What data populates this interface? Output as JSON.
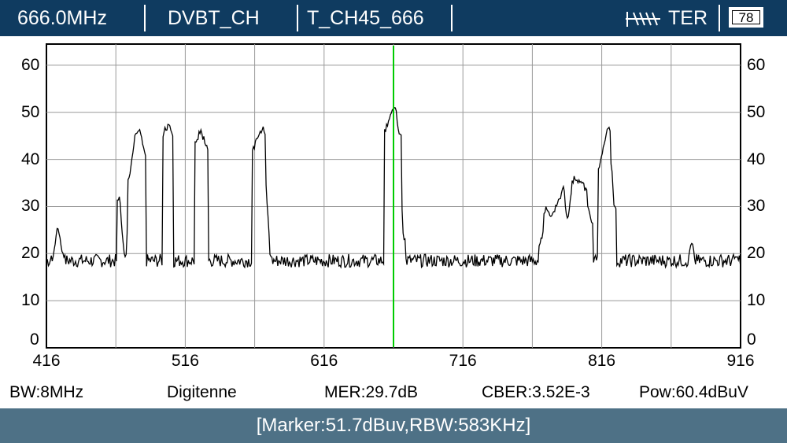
{
  "header": {
    "frequency": "666.0MHz",
    "standard": "DVBT_CH",
    "channel": "T_CH45_666",
    "signal_type": "TER",
    "battery": "78"
  },
  "status": {
    "bandwidth": "BW:8MHz",
    "network": "Digitenne",
    "mer": "MER:29.7dB",
    "cber": "CBER:3.52E-3",
    "power": "Pow:60.4dBuV"
  },
  "marker_info": "[Marker:51.7dBuv,RBW:583KHz]",
  "colors": {
    "header_bg": "#0f3b60",
    "footer_bg": "#4e7186",
    "marker": "#00cc00",
    "trace": "#000000",
    "grid": "#999999"
  },
  "chart_data": {
    "type": "line",
    "x_ticks": [
      "416",
      "516",
      "616",
      "716",
      "816",
      "916"
    ],
    "y_ticks": [
      "0",
      "10",
      "20",
      "30",
      "40",
      "50",
      "60"
    ],
    "xlim": [
      416,
      916
    ],
    "ylim": [
      0,
      60
    ],
    "marker_x": 666,
    "grid": true,
    "noise_floor": 18.5,
    "peaks": [
      {
        "x": 419,
        "y": 16
      },
      {
        "x": 424,
        "y": 25
      },
      {
        "x": 427,
        "y": 21
      },
      {
        "x": 468,
        "y": 32
      },
      {
        "x": 473,
        "y": 18
      },
      {
        "x": 476,
        "y": 37
      },
      {
        "x": 481,
        "y": 46
      },
      {
        "x": 483,
        "y": 46
      },
      {
        "x": 486,
        "y": 42
      },
      {
        "x": 501,
        "y": 46
      },
      {
        "x": 504,
        "y": 47
      },
      {
        "x": 506,
        "y": 46
      },
      {
        "x": 524,
        "y": 44
      },
      {
        "x": 527,
        "y": 46
      },
      {
        "x": 531,
        "y": 43
      },
      {
        "x": 566,
        "y": 43
      },
      {
        "x": 569,
        "y": 45
      },
      {
        "x": 572,
        "y": 47
      },
      {
        "x": 577,
        "y": 20
      },
      {
        "x": 661,
        "y": 47
      },
      {
        "x": 665,
        "y": 50
      },
      {
        "x": 667,
        "y": 51.5
      },
      {
        "x": 670,
        "y": 46
      },
      {
        "x": 673,
        "y": 24
      },
      {
        "x": 772,
        "y": 22
      },
      {
        "x": 776,
        "y": 30
      },
      {
        "x": 779,
        "y": 28
      },
      {
        "x": 784,
        "y": 30
      },
      {
        "x": 788,
        "y": 34
      },
      {
        "x": 791,
        "y": 27
      },
      {
        "x": 796,
        "y": 36
      },
      {
        "x": 800,
        "y": 35
      },
      {
        "x": 804,
        "y": 34
      },
      {
        "x": 808,
        "y": 27
      },
      {
        "x": 815,
        "y": 39
      },
      {
        "x": 818,
        "y": 43
      },
      {
        "x": 821,
        "y": 47
      },
      {
        "x": 825,
        "y": 30
      },
      {
        "x": 881,
        "y": 22
      },
      {
        "x": 912,
        "y": 19
      }
    ]
  }
}
